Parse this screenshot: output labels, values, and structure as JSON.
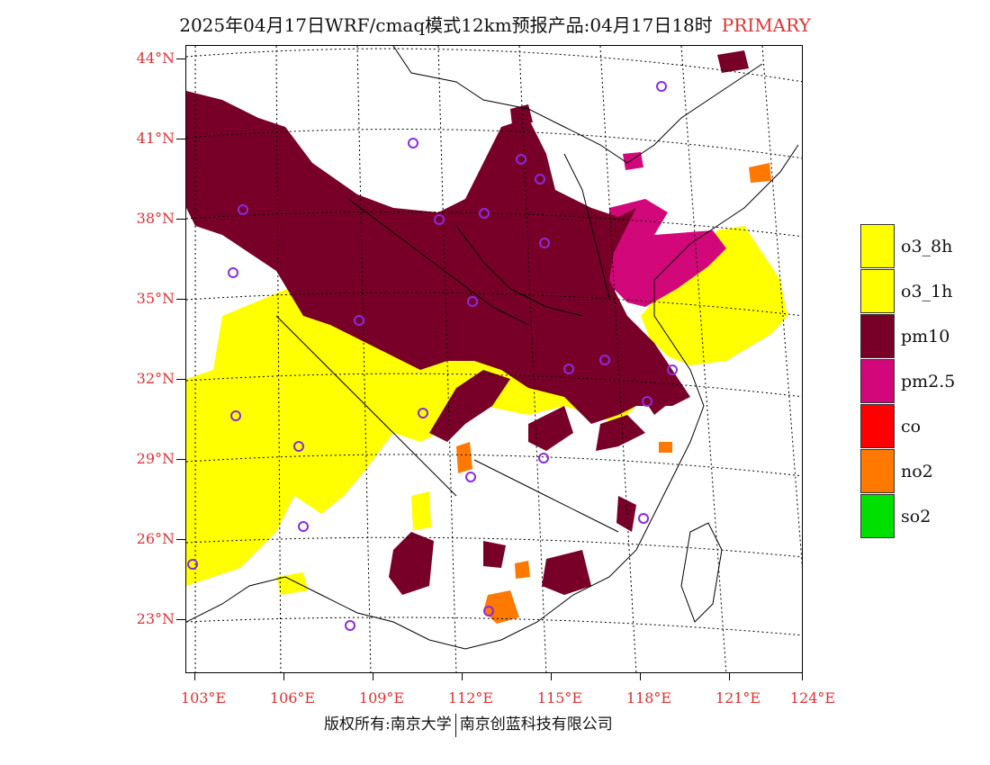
{
  "title": {
    "main": "2025年04月17日WRF/cmaq模式12km预报产品:04月17日18时",
    "tag": "PRIMARY"
  },
  "lat_labels": [
    "44°N",
    "41°N",
    "38°N",
    "35°N",
    "32°N",
    "29°N",
    "26°N",
    "23°N"
  ],
  "lon_labels": [
    "103°E",
    "106°E",
    "109°E",
    "112°E",
    "115°E",
    "118°E",
    "121°E",
    "124°E"
  ],
  "legend": [
    {
      "label": "o3_8h",
      "color": "#ffff00"
    },
    {
      "label": "o3_1h",
      "color": "#ffff00"
    },
    {
      "label": "pm10",
      "color": "#780028"
    },
    {
      "label": "pm2.5",
      "color": "#d2087a"
    },
    {
      "label": "co",
      "color": "#ff0000"
    },
    {
      "label": "no2",
      "color": "#ff7800"
    },
    {
      "label": "so2",
      "color": "#00e000"
    }
  ],
  "colors": {
    "pm10": "#780028",
    "pm25": "#d2087a",
    "o3": "#ffff00",
    "no2": "#ff7800",
    "station": "#8a2be2",
    "label": "#e03030"
  },
  "footer": {
    "left": "版权所有:南京大学",
    "right": "南京创蓝科技有限公司"
  }
}
